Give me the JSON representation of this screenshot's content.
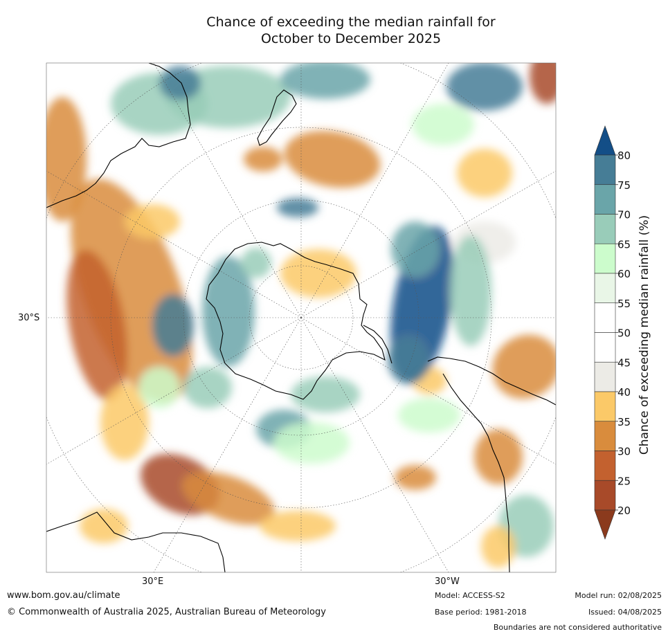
{
  "title": {
    "line1": "Chance of exceeding the median rainfall for",
    "line2": "October to December 2025"
  },
  "axis": {
    "lat_label": "30°S",
    "lon_label_left": "30°E",
    "lon_label_right": "30°W"
  },
  "colorbar": {
    "title": "Chance of exceeding median rainfall (%)",
    "ticks": [
      "20",
      "25",
      "30",
      "35",
      "40",
      "45",
      "50",
      "55",
      "60",
      "65",
      "70",
      "75",
      "80"
    ],
    "colors": {
      "lt20": "#8b3a1d",
      "20-25": "#a84a29",
      "25-30": "#c3612f",
      "30-35": "#d98c3d",
      "35-40": "#fbc968",
      "40-45": "#ecebe6",
      "45-50": "#ffffff",
      "50-55": "#ffffff",
      "55-60": "#e9f6e7",
      "60-65": "#ccfccc",
      "65-70": "#99ccb9",
      "70-75": "#6aa5a9",
      "75-80": "#467d96",
      "gt80": "#134e87"
    }
  },
  "footer": {
    "website": "www.bom.gov.au/climate",
    "copyright": "© Commonwealth of Australia 2025, Australian Bureau of Meteorology",
    "model": "Model: ACCESS-S2",
    "base_period": "Base period: 1981-2018",
    "model_run": "Model run: 02/08/2025",
    "issued": "Issued: 04/08/2025",
    "disclaimer": "Boundaries are not considered authoritative"
  }
}
